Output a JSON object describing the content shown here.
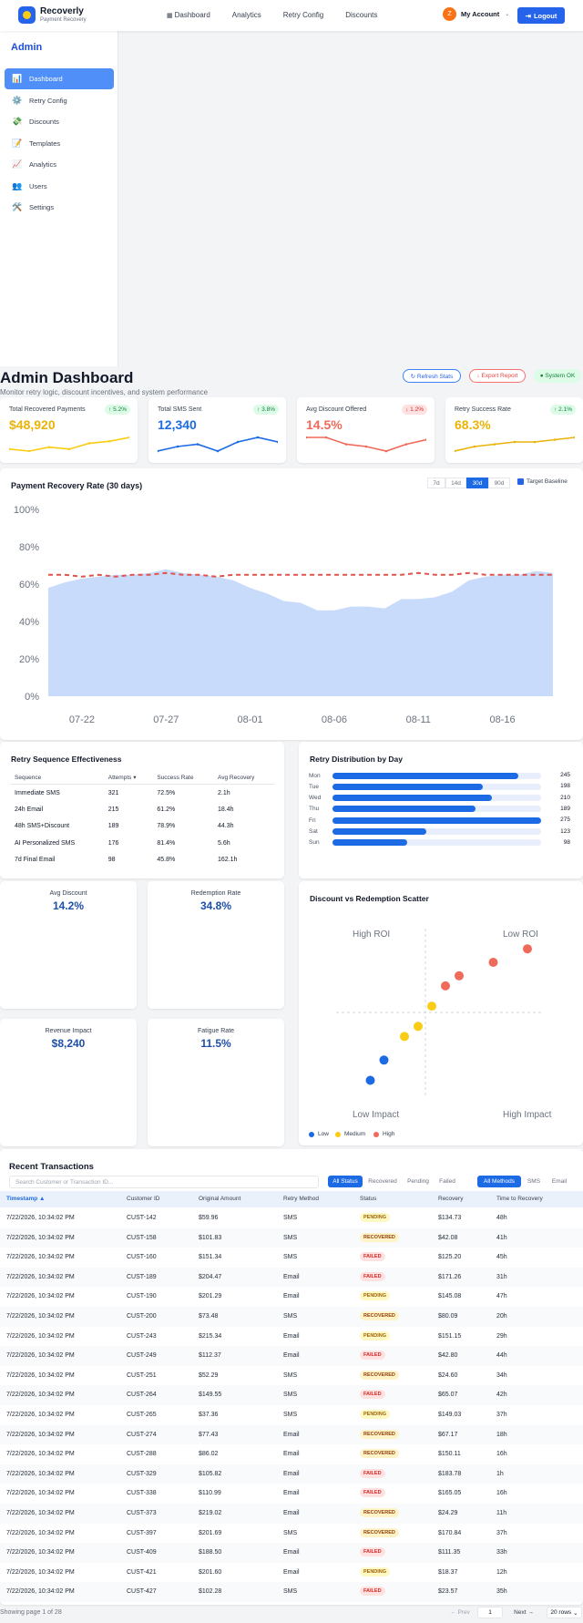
{
  "header": {
    "brand": "Recoverly",
    "brand_sub": "Payment Recovery",
    "nav": [
      "Dashboard",
      "Analytics",
      "Retry Config",
      "Discounts"
    ],
    "avatar_initial": "Z",
    "account": "My Account",
    "logout": "Logout"
  },
  "sidebar": {
    "title": "Admin",
    "items": [
      {
        "label": "Dashboard",
        "icon": "📊"
      },
      {
        "label": "Retry Config",
        "icon": "⚙️"
      },
      {
        "label": "Discounts",
        "icon": "💸"
      },
      {
        "label": "Templates",
        "icon": "📝"
      },
      {
        "label": "Analytics",
        "icon": "📈"
      },
      {
        "label": "Users",
        "icon": "👥"
      },
      {
        "label": "Settings",
        "icon": "🛠️"
      }
    ]
  },
  "dashboard": {
    "title": "Admin Dashboard",
    "subtitle": "Monitor retry logic, discount incentives, and system performance",
    "refresh": "↻ Refresh Stats",
    "export": "↓ Export Report",
    "status": "● System OK"
  },
  "stats": [
    {
      "label": "Total Recovered Payments",
      "value": "$48,920",
      "change": "↑ 5.2%",
      "dir": "up",
      "color": "#facc15",
      "trend": [
        3,
        2,
        4,
        3,
        6,
        7,
        9
      ]
    },
    {
      "label": "Total SMS Sent",
      "value": "12,340",
      "change": "↑ 3.8%",
      "dir": "up",
      "color": "#1d6ae5",
      "trend": [
        3,
        5,
        6,
        3,
        7,
        9,
        7
      ]
    },
    {
      "label": "Avg Discount Offered",
      "value": "14.5%",
      "change": "↓ 1.2%",
      "dir": "down",
      "color": "#ef6a5a",
      "trend": [
        8,
        8,
        5,
        4,
        2,
        5,
        7
      ]
    },
    {
      "label": "Retry Success Rate",
      "value": "68.3%",
      "change": "↑ 2.1%",
      "dir": "up",
      "color": "#eab308",
      "trend": [
        2,
        4,
        5,
        6,
        6,
        7,
        8
      ]
    }
  ],
  "recovery_chart": {
    "title": "Payment Recovery Rate (30 days)",
    "ranges": [
      "7d",
      "14d",
      "30d",
      "90d"
    ],
    "active_range": "30d",
    "target_label": "Target Baseline"
  },
  "chart_data": {
    "type": "area",
    "x": [
      "07-20",
      "07-21",
      "07-22",
      "07-23",
      "07-24",
      "07-25",
      "07-26",
      "07-27",
      "07-28",
      "07-29",
      "07-30",
      "07-31",
      "08-01",
      "08-02",
      "08-03",
      "08-04",
      "08-05",
      "08-06",
      "08-07",
      "08-08",
      "08-09",
      "08-10",
      "08-11",
      "08-12",
      "08-13",
      "08-14",
      "08-15",
      "08-16",
      "08-17",
      "08-18",
      "08-19"
    ],
    "xticks": [
      "07-22",
      "07-27",
      "08-01",
      "08-06",
      "08-11",
      "08-16"
    ],
    "yticks": [
      "0%",
      "20%",
      "40%",
      "60%",
      "80%",
      "100%"
    ],
    "ylim": [
      0,
      100
    ],
    "series": [
      {
        "values": [
          58,
          61,
          63,
          64,
          65,
          65,
          66,
          68,
          66,
          65,
          64,
          62,
          58,
          55,
          51,
          50,
          46,
          46,
          48,
          48,
          47,
          52,
          52,
          53,
          56,
          62,
          64,
          65,
          65,
          67,
          66
        ]
      },
      {
        "values": [
          65,
          65,
          64,
          65,
          64,
          65,
          65,
          66,
          65,
          65,
          64,
          65,
          65,
          65,
          65,
          65,
          65,
          65,
          65,
          65,
          65,
          65,
          66,
          65,
          65,
          66,
          65,
          65,
          65,
          65,
          65
        ]
      }
    ]
  },
  "sequence": {
    "title": "Retry Sequence Effectiveness",
    "headers": [
      "Sequence",
      "Attempts ▾",
      "Success Rate",
      "Avg Recovery"
    ],
    "rows": [
      [
        "Immediate SMS",
        "321",
        "72.5%",
        "2.1h"
      ],
      [
        "24h Email",
        "215",
        "61.2%",
        "18.4h"
      ],
      [
        "48h SMS+Discount",
        "189",
        "78.9%",
        "44.3h"
      ],
      [
        "AI Personalized SMS",
        "176",
        "81.4%",
        "5.6h"
      ],
      [
        "7d Final Email",
        "98",
        "45.8%",
        "162.1h"
      ]
    ]
  },
  "distribution": {
    "title": "Retry Distribution by Day",
    "days": [
      {
        "day": "Mon",
        "value": "245",
        "n": 245
      },
      {
        "day": "Tue",
        "value": "198",
        "n": 198
      },
      {
        "day": "Wed",
        "value": "210",
        "n": 210
      },
      {
        "day": "Thu",
        "value": "189",
        "n": 189
      },
      {
        "day": "Fri",
        "value": "275",
        "n": 275
      },
      {
        "day": "Sat",
        "value": "123",
        "n": 123
      },
      {
        "day": "Sun",
        "value": "98",
        "n": 98
      }
    ],
    "max": 275
  },
  "kpis": [
    {
      "label": "Avg Discount",
      "value": "14.2%"
    },
    {
      "label": "Redemption Rate",
      "value": "34.8%"
    },
    {
      "label": "Revenue Impact",
      "value": "$8,240"
    },
    {
      "label": "Fatigue Rate",
      "value": "11.5%"
    }
  ],
  "scatter": {
    "title": "Discount vs Redemption Scatter",
    "quadrants": [
      "High ROI",
      "Low ROI",
      "Low Impact",
      "High Impact"
    ],
    "legend": [
      {
        "label": "Low",
        "color": "#1d6ae5"
      },
      {
        "label": "Medium",
        "color": "#facc15"
      },
      {
        "label": "High",
        "color": "#ef6a5a"
      }
    ],
    "points": [
      {
        "x": 5,
        "y": 5,
        "level": 0
      },
      {
        "x": 7,
        "y": 11,
        "level": 0
      },
      {
        "x": 10,
        "y": 18,
        "level": 1
      },
      {
        "x": 12,
        "y": 21,
        "level": 1
      },
      {
        "x": 14,
        "y": 27,
        "level": 1
      },
      {
        "x": 16,
        "y": 33,
        "level": 2
      },
      {
        "x": 18,
        "y": 36,
        "level": 2
      },
      {
        "x": 23,
        "y": 40,
        "level": 2
      },
      {
        "x": 28,
        "y": 44,
        "level": 2
      }
    ]
  },
  "transactions": {
    "title": "Recent Transactions",
    "search_placeholder": "Search Customer or Transaction ID...",
    "status_filters": [
      "All Status",
      "Recovered",
      "Pending",
      "Failed"
    ],
    "method_filters": [
      "All Methods",
      "SMS",
      "Email"
    ],
    "headers": [
      "Timestamp ▲",
      "Customer ID",
      "Original Amount",
      "Retry Method",
      "Status",
      "Recovery",
      "Time to Recovery"
    ],
    "rows": [
      [
        "7/22/2026, 10:34:02 PM",
        "CUST-142",
        "$59.96",
        "SMS",
        "PENDING",
        "$134.73",
        "48h"
      ],
      [
        "7/22/2026, 10:34:02 PM",
        "CUST-158",
        "$101.83",
        "SMS",
        "RECOVERED",
        "$42.08",
        "41h"
      ],
      [
        "7/22/2026, 10:34:02 PM",
        "CUST-160",
        "$151.34",
        "SMS",
        "FAILED",
        "$125.20",
        "45h"
      ],
      [
        "7/22/2026, 10:34:02 PM",
        "CUST-189",
        "$204.47",
        "Email",
        "FAILED",
        "$171.26",
        "31h"
      ],
      [
        "7/22/2026, 10:34:02 PM",
        "CUST-190",
        "$201.29",
        "Email",
        "PENDING",
        "$145.08",
        "47h"
      ],
      [
        "7/22/2026, 10:34:02 PM",
        "CUST-200",
        "$73.48",
        "SMS",
        "RECOVERED",
        "$80.09",
        "20h"
      ],
      [
        "7/22/2026, 10:34:02 PM",
        "CUST-243",
        "$215.34",
        "Email",
        "PENDING",
        "$151.15",
        "29h"
      ],
      [
        "7/22/2026, 10:34:02 PM",
        "CUST-249",
        "$112.37",
        "Email",
        "FAILED",
        "$42.80",
        "44h"
      ],
      [
        "7/22/2026, 10:34:02 PM",
        "CUST-251",
        "$52.29",
        "SMS",
        "RECOVERED",
        "$24.60",
        "34h"
      ],
      [
        "7/22/2026, 10:34:02 PM",
        "CUST-264",
        "$149.55",
        "SMS",
        "FAILED",
        "$65.07",
        "42h"
      ],
      [
        "7/22/2026, 10:34:02 PM",
        "CUST-265",
        "$37.36",
        "SMS",
        "PENDING",
        "$149.03",
        "37h"
      ],
      [
        "7/22/2026, 10:34:02 PM",
        "CUST-274",
        "$77.43",
        "Email",
        "RECOVERED",
        "$67.17",
        "18h"
      ],
      [
        "7/22/2026, 10:34:02 PM",
        "CUST-288",
        "$86.02",
        "Email",
        "RECOVERED",
        "$150.11",
        "16h"
      ],
      [
        "7/22/2026, 10:34:02 PM",
        "CUST-329",
        "$105.82",
        "Email",
        "FAILED",
        "$183.78",
        "1h"
      ],
      [
        "7/22/2026, 10:34:02 PM",
        "CUST-338",
        "$110.99",
        "Email",
        "FAILED",
        "$165.05",
        "16h"
      ],
      [
        "7/22/2026, 10:34:02 PM",
        "CUST-373",
        "$219.02",
        "Email",
        "RECOVERED",
        "$24.29",
        "11h"
      ],
      [
        "7/22/2026, 10:34:02 PM",
        "CUST-397",
        "$201.69",
        "SMS",
        "RECOVERED",
        "$170.84",
        "37h"
      ],
      [
        "7/22/2026, 10:34:02 PM",
        "CUST-409",
        "$188.50",
        "Email",
        "FAILED",
        "$111.35",
        "33h"
      ],
      [
        "7/22/2026, 10:34:02 PM",
        "CUST-421",
        "$201.60",
        "Email",
        "PENDING",
        "$18.37",
        "12h"
      ],
      [
        "7/22/2026, 10:34:02 PM",
        "CUST-427",
        "$102.28",
        "SMS",
        "FAILED",
        "$23.57",
        "35h"
      ]
    ],
    "footer": "Showing page 1 of 28",
    "prev": "← Prev",
    "page": "1",
    "next": "Next →",
    "rows_per_page": "20 rows"
  }
}
